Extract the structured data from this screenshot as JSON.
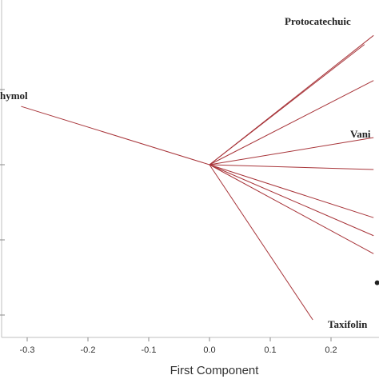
{
  "chart_data": {
    "type": "scatter",
    "subtype": "loading-plot",
    "xlabel": "First Component",
    "ylabel": "",
    "xlim": [
      -0.335,
      0.275
    ],
    "ylim": [
      -0.26,
      0.235
    ],
    "x_ticks": [
      -0.3,
      -0.2,
      -0.1,
      0.0,
      0.1,
      0.2
    ],
    "x_tick_labels": [
      "-0.3",
      "-0.2",
      "-0.1",
      "0.0",
      "0.1",
      "0.2"
    ],
    "y_ticks": [
      -0.25,
      -0.125,
      0.0,
      0.125
    ],
    "grid": false,
    "vector_color": "#a8353a",
    "origin": [
      0,
      0
    ],
    "vectors": [
      {
        "label": "Protocatechuic",
        "x": 0.255,
        "y": 0.2
      },
      {
        "label": "",
        "x": 0.27,
        "y": 0.215
      },
      {
        "label": "",
        "x": 0.27,
        "y": 0.14
      },
      {
        "label": "Vani",
        "x": 0.27,
        "y": 0.045
      },
      {
        "label": "",
        "x": 0.27,
        "y": -0.008
      },
      {
        "label": "",
        "x": 0.27,
        "y": -0.088
      },
      {
        "label": "",
        "x": 0.27,
        "y": -0.118
      },
      {
        "label": "",
        "x": 0.27,
        "y": -0.148
      },
      {
        "label": "hymol",
        "x": -0.31,
        "y": 0.097
      },
      {
        "label": "Taxifolin",
        "x": 0.17,
        "y": -0.258
      }
    ],
    "annotations": [
      {
        "label": "",
        "x": 0.272,
        "y": -0.187,
        "marker": "dot"
      }
    ]
  }
}
